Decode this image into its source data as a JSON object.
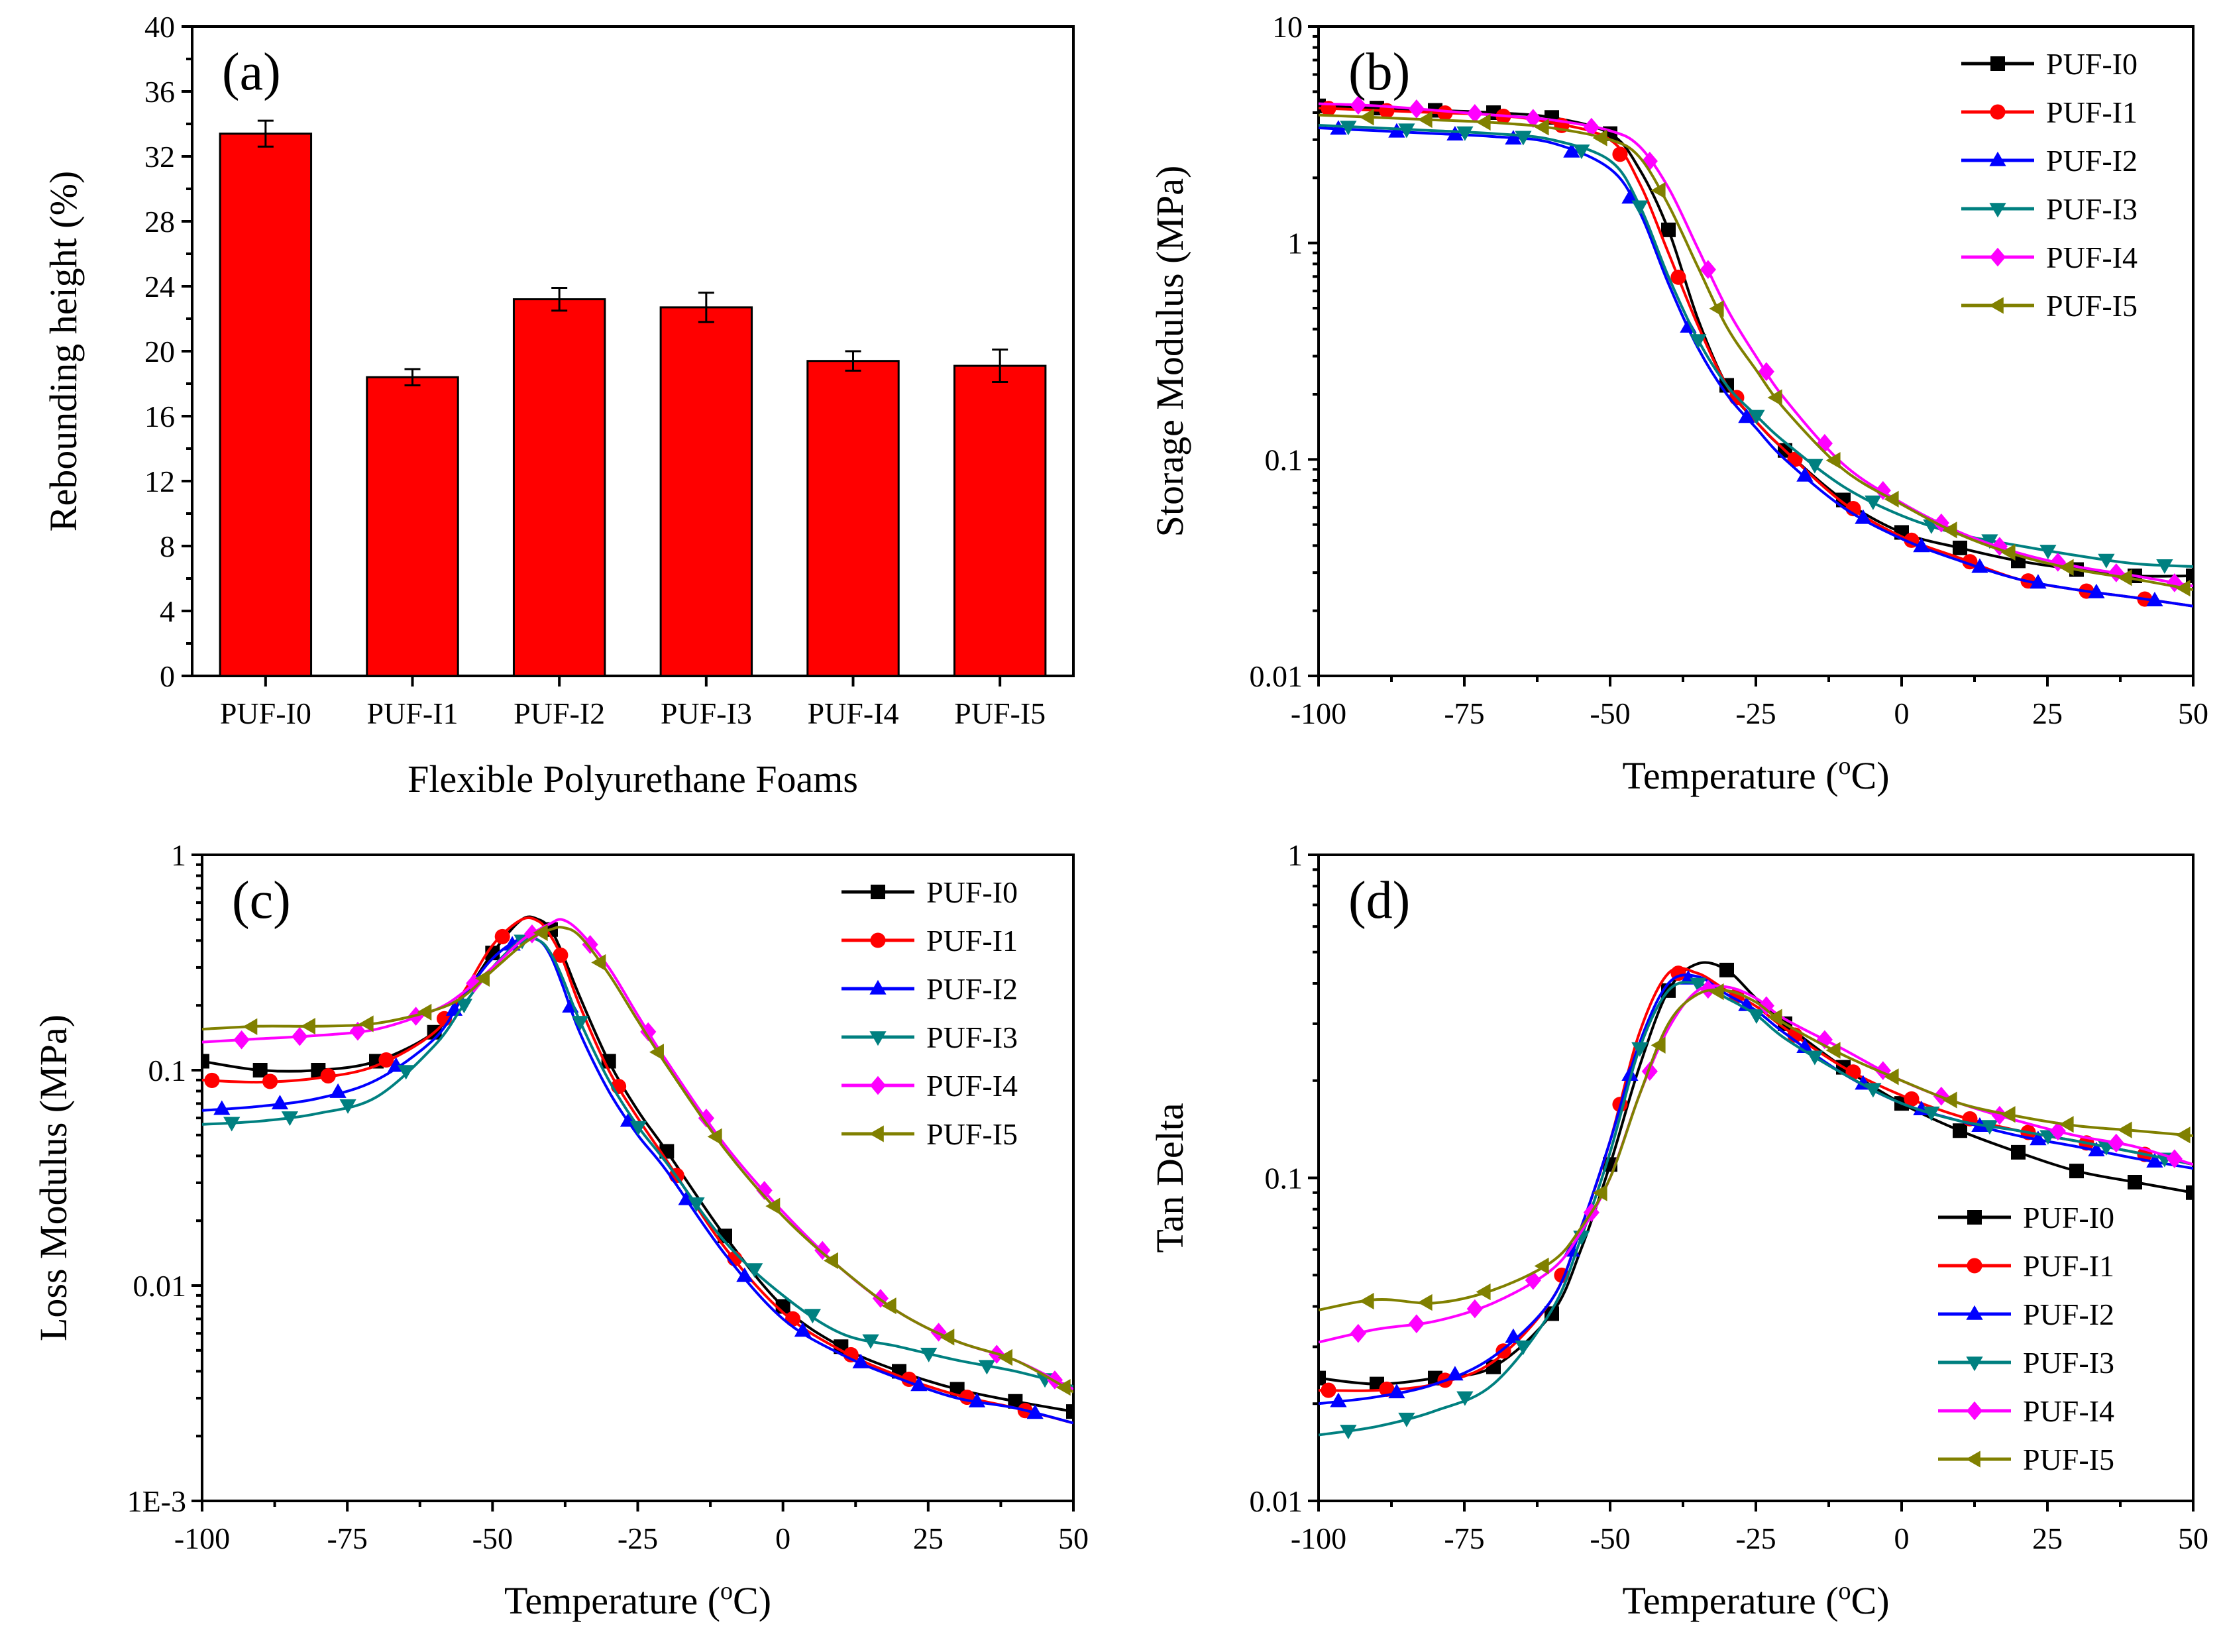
{
  "chart_data": [
    {
      "id": "a",
      "type": "bar",
      "panel_label": "(a)",
      "xlabel": "Flexible Polyurethane Foams",
      "ylabel": "Rebounding height (%)",
      "ylim": [
        0,
        40
      ],
      "yticks": [
        "0",
        "4",
        "8",
        "12",
        "16",
        "20",
        "24",
        "28",
        "32",
        "36",
        "40"
      ],
      "categories": [
        "PUF-I0",
        "PUF-I1",
        "PUF-I2",
        "PUF-I3",
        "PUF-I4",
        "PUF-I5"
      ],
      "values": [
        33.4,
        18.4,
        23.2,
        22.7,
        19.4,
        19.1
      ],
      "errors": [
        0.8,
        0.5,
        0.7,
        0.9,
        0.6,
        1.0
      ],
      "bar_color": "#ff0000"
    },
    {
      "id": "b",
      "type": "line",
      "panel_label": "(b)",
      "xlabel": "Temperature (°C)",
      "ylabel": "Storage Modulus (MPa)",
      "yscale": "log",
      "xlim": [
        -100,
        50
      ],
      "ylim": [
        0.01,
        10
      ],
      "xticks": [
        "-100",
        "-75",
        "-50",
        "-25",
        "0",
        "25",
        "50"
      ],
      "yticks": [
        "0.01",
        "0.1",
        "1",
        "10"
      ],
      "legend_position": "top-right",
      "x": [
        -100,
        -90,
        -80,
        -70,
        -60,
        -50,
        -45,
        -40,
        -35,
        -30,
        -25,
        -20,
        -10,
        0,
        10,
        20,
        30,
        40,
        50
      ],
      "series": [
        {
          "name": "PUF-I0",
          "color": "#000000",
          "marker": "square",
          "values": [
            4.3,
            4.2,
            4.1,
            4.0,
            3.8,
            3.2,
            2.2,
            1.15,
            0.45,
            0.22,
            0.15,
            0.11,
            0.065,
            0.046,
            0.039,
            0.034,
            0.031,
            0.029,
            0.029
          ]
        },
        {
          "name": "PUF-I1",
          "color": "#ff0000",
          "marker": "circle",
          "values": [
            4.2,
            4.1,
            4.0,
            3.9,
            3.6,
            3.0,
            1.9,
            0.9,
            0.42,
            0.22,
            0.15,
            0.11,
            0.063,
            0.044,
            0.035,
            0.028,
            0.025,
            0.023,
            0.021
          ]
        },
        {
          "name": "PUF-I2",
          "color": "#0000ff",
          "marker": "triangle-up",
          "values": [
            3.4,
            3.3,
            3.2,
            3.1,
            2.9,
            2.2,
            1.4,
            0.65,
            0.33,
            0.2,
            0.14,
            0.1,
            0.06,
            0.043,
            0.034,
            0.028,
            0.025,
            0.023,
            0.021
          ]
        },
        {
          "name": "PUF-I3",
          "color": "#008080",
          "marker": "triangle-down",
          "values": [
            3.5,
            3.4,
            3.3,
            3.2,
            3.0,
            2.4,
            1.5,
            0.7,
            0.36,
            0.22,
            0.16,
            0.12,
            0.075,
            0.055,
            0.045,
            0.04,
            0.036,
            0.033,
            0.032
          ]
        },
        {
          "name": "PUF-I4",
          "color": "#ff00ff",
          "marker": "diamond",
          "values": [
            4.4,
            4.3,
            4.1,
            3.9,
            3.7,
            3.3,
            2.8,
            1.8,
            0.95,
            0.5,
            0.3,
            0.19,
            0.095,
            0.063,
            0.046,
            0.037,
            0.032,
            0.029,
            0.026
          ]
        },
        {
          "name": "PUF-I5",
          "color": "#808000",
          "marker": "triangle-left",
          "values": [
            3.9,
            3.8,
            3.7,
            3.6,
            3.4,
            3.0,
            2.5,
            1.5,
            0.78,
            0.41,
            0.26,
            0.17,
            0.09,
            0.062,
            0.045,
            0.036,
            0.031,
            0.028,
            0.025
          ]
        }
      ]
    },
    {
      "id": "c",
      "type": "line",
      "panel_label": "(c)",
      "xlabel": "Temperature (°C)",
      "ylabel": "Loss Modulus (MPa)",
      "yscale": "log",
      "xlim": [
        -100,
        50
      ],
      "ylim": [
        0.001,
        1
      ],
      "xticks": [
        "-100",
        "-75",
        "-50",
        "-25",
        "0",
        "25",
        "50"
      ],
      "yticks": [
        "1E-3",
        "0.01",
        "0.1",
        "1"
      ],
      "legend_position": "top-right",
      "x": [
        -100,
        -90,
        -80,
        -70,
        -60,
        -55,
        -50,
        -45,
        -42,
        -40,
        -38,
        -35,
        -30,
        -25,
        -20,
        -10,
        0,
        10,
        20,
        30,
        40,
        50
      ],
      "series": [
        {
          "name": "PUF-I0",
          "color": "#000000",
          "marker": "square",
          "values": [
            0.11,
            0.1,
            0.1,
            0.11,
            0.15,
            0.22,
            0.35,
            0.5,
            0.5,
            0.45,
            0.35,
            0.22,
            0.11,
            0.065,
            0.042,
            0.017,
            0.008,
            0.0052,
            0.004,
            0.0033,
            0.0029,
            0.0026
          ]
        },
        {
          "name": "PUF-I1",
          "color": "#ff0000",
          "marker": "circle",
          "values": [
            0.09,
            0.088,
            0.092,
            0.105,
            0.15,
            0.23,
            0.38,
            0.5,
            0.49,
            0.42,
            0.33,
            0.2,
            0.1,
            0.06,
            0.038,
            0.015,
            0.0075,
            0.005,
            0.0038,
            0.0031,
            0.0027,
            0.0023
          ]
        },
        {
          "name": "PUF-I2",
          "color": "#0000ff",
          "marker": "triangle-up",
          "values": [
            0.065,
            0.068,
            0.074,
            0.09,
            0.14,
            0.22,
            0.33,
            0.41,
            0.4,
            0.34,
            0.25,
            0.15,
            0.08,
            0.05,
            0.034,
            0.014,
            0.007,
            0.0048,
            0.0037,
            0.003,
            0.0027,
            0.0023
          ]
        },
        {
          "name": "PUF-I3",
          "color": "#008080",
          "marker": "triangle-down",
          "values": [
            0.056,
            0.058,
            0.063,
            0.075,
            0.13,
            0.2,
            0.3,
            0.4,
            0.4,
            0.35,
            0.27,
            0.17,
            0.09,
            0.055,
            0.037,
            0.016,
            0.009,
            0.006,
            0.0052,
            0.0045,
            0.004,
            0.0034
          ]
        },
        {
          "name": "PUF-I4",
          "color": "#ff00ff",
          "marker": "diamond",
          "values": [
            0.135,
            0.14,
            0.145,
            0.155,
            0.19,
            0.23,
            0.3,
            0.4,
            0.45,
            0.48,
            0.5,
            0.44,
            0.3,
            0.18,
            0.11,
            0.045,
            0.022,
            0.012,
            0.0075,
            0.0055,
            0.0045,
            0.0033
          ]
        },
        {
          "name": "PUF-I5",
          "color": "#808000",
          "marker": "triangle-left",
          "values": [
            0.155,
            0.16,
            0.16,
            0.165,
            0.19,
            0.22,
            0.29,
            0.38,
            0.43,
            0.45,
            0.46,
            0.42,
            0.28,
            0.17,
            0.105,
            0.043,
            0.021,
            0.012,
            0.0075,
            0.0055,
            0.0045,
            0.0032
          ]
        }
      ]
    },
    {
      "id": "d",
      "type": "line",
      "panel_label": "(d)",
      "xlabel": "Temperature (°C)",
      "ylabel": "Tan Delta",
      "yscale": "log",
      "xlim": [
        -100,
        50
      ],
      "ylim": [
        0.01,
        1
      ],
      "xticks": [
        "-100",
        "-75",
        "-50",
        "-25",
        "0",
        "25",
        "50"
      ],
      "yticks": [
        "0.01",
        "0.1",
        "1"
      ],
      "legend_position": "bottom-right",
      "x": [
        -100,
        -90,
        -80,
        -70,
        -60,
        -55,
        -50,
        -45,
        -40,
        -35,
        -30,
        -25,
        -20,
        -10,
        0,
        10,
        20,
        30,
        40,
        50
      ],
      "series": [
        {
          "name": "PUF-I0",
          "color": "#000000",
          "marker": "square",
          "values": [
            0.024,
            0.023,
            0.024,
            0.026,
            0.038,
            0.06,
            0.11,
            0.22,
            0.38,
            0.46,
            0.44,
            0.36,
            0.3,
            0.22,
            0.17,
            0.14,
            0.12,
            0.105,
            0.097,
            0.09
          ]
        },
        {
          "name": "PUF-I1",
          "color": "#ff0000",
          "marker": "circle",
          "values": [
            0.022,
            0.022,
            0.023,
            0.027,
            0.042,
            0.07,
            0.13,
            0.28,
            0.43,
            0.43,
            0.38,
            0.34,
            0.29,
            0.22,
            0.18,
            0.155,
            0.14,
            0.13,
            0.12,
            0.11
          ]
        },
        {
          "name": "PUF-I2",
          "color": "#0000ff",
          "marker": "triangle-up",
          "values": [
            0.02,
            0.021,
            0.023,
            0.028,
            0.042,
            0.07,
            0.13,
            0.26,
            0.4,
            0.42,
            0.37,
            0.33,
            0.28,
            0.21,
            0.17,
            0.15,
            0.135,
            0.125,
            0.115,
            0.107
          ]
        },
        {
          "name": "PUF-I3",
          "color": "#008080",
          "marker": "triangle-down",
          "values": [
            0.016,
            0.017,
            0.019,
            0.023,
            0.039,
            0.065,
            0.12,
            0.25,
            0.38,
            0.4,
            0.36,
            0.32,
            0.27,
            0.21,
            0.17,
            0.15,
            0.14,
            0.13,
            0.12,
            0.11
          ]
        },
        {
          "name": "PUF-I4",
          "color": "#ff00ff",
          "marker": "diamond",
          "values": [
            0.031,
            0.034,
            0.036,
            0.041,
            0.052,
            0.068,
            0.1,
            0.18,
            0.29,
            0.38,
            0.39,
            0.36,
            0.31,
            0.25,
            0.2,
            0.17,
            0.15,
            0.135,
            0.125,
            0.11
          ]
        },
        {
          "name": "PUF-I5",
          "color": "#808000",
          "marker": "triangle-left",
          "values": [
            0.039,
            0.042,
            0.041,
            0.045,
            0.055,
            0.07,
            0.1,
            0.18,
            0.3,
            0.37,
            0.38,
            0.35,
            0.3,
            0.24,
            0.2,
            0.17,
            0.155,
            0.145,
            0.14,
            0.135
          ]
        }
      ]
    }
  ]
}
